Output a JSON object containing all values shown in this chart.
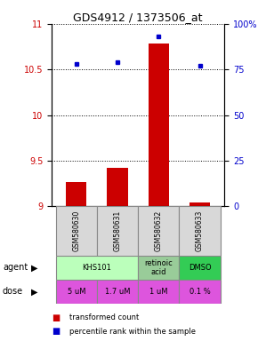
{
  "title": "GDS4912 / 1373506_at",
  "samples": [
    "GSM580630",
    "GSM580631",
    "GSM580632",
    "GSM580633"
  ],
  "bar_values": [
    9.27,
    9.42,
    10.78,
    9.04
  ],
  "dot_values": [
    78,
    79,
    93,
    77
  ],
  "ylim_left": [
    9,
    11
  ],
  "ylim_right": [
    0,
    100
  ],
  "yticks_left": [
    9,
    9.5,
    10,
    10.5,
    11
  ],
  "yticks_right": [
    0,
    25,
    50,
    75,
    100
  ],
  "ytick_labels_right": [
    "0",
    "25",
    "50",
    "75",
    "100%"
  ],
  "bar_color": "#cc0000",
  "dot_color": "#0000cc",
  "bar_bottom": 9,
  "agent_data": [
    {
      "cols": [
        0,
        1
      ],
      "label": "KHS101",
      "color": "#bbffbb"
    },
    {
      "cols": [
        2
      ],
      "label": "retinoic\nacid",
      "color": "#99cc99"
    },
    {
      "cols": [
        3
      ],
      "label": "DMSO",
      "color": "#33cc55"
    }
  ],
  "doses": [
    "5 uM",
    "1.7 uM",
    "1 uM",
    "0.1 %"
  ],
  "dose_color": "#dd55dd",
  "legend_bar_label": "transformed count",
  "legend_dot_label": "percentile rank within the sample",
  "x_positions": [
    0,
    1,
    2,
    3
  ]
}
